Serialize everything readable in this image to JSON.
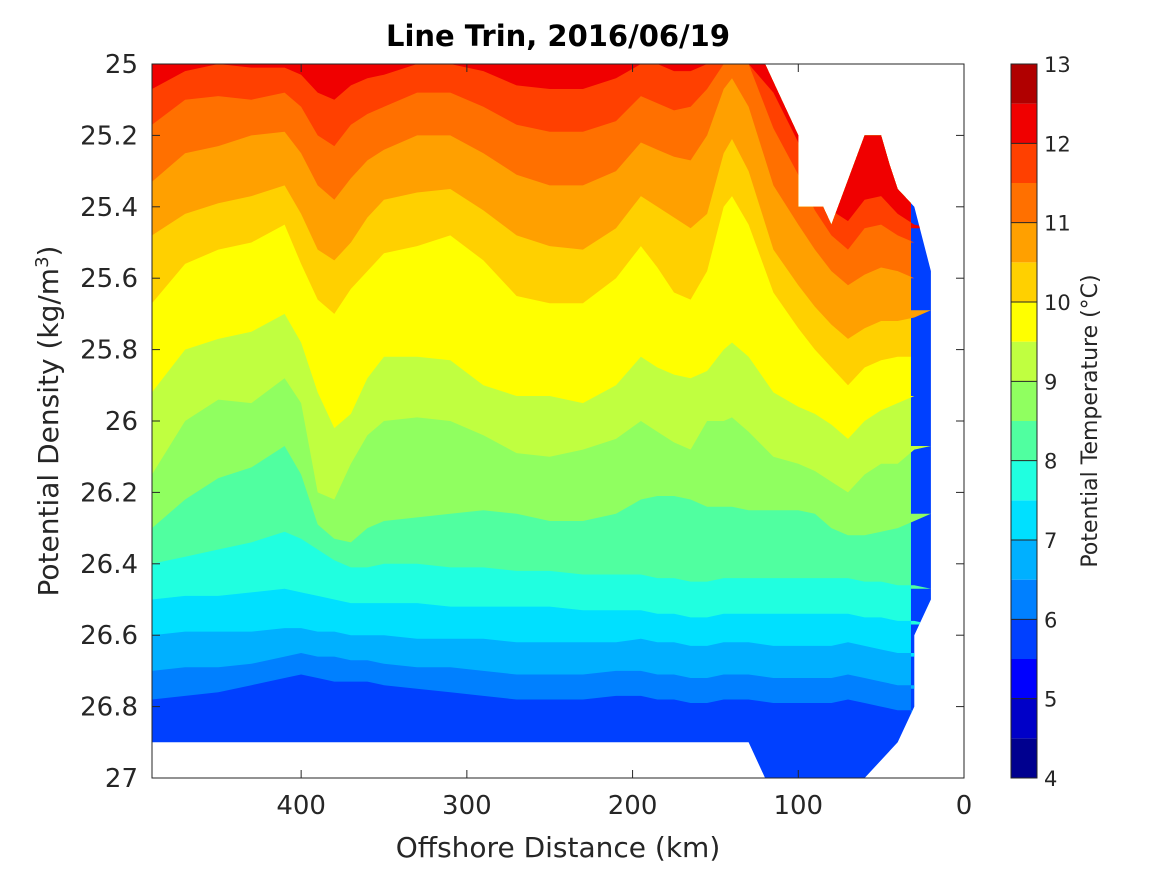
{
  "chart_data": {
    "type": "contour",
    "title": "Line Trin, 2016/06/19",
    "xlabel": "Offshore Distance (km)",
    "ylabel": "Potential Density (kg/m",
    "ylabel_sup": "3",
    "ylabel_close": ")",
    "colorbar_label": "Potential Temperature (°C)",
    "x_reversed": true,
    "y_reversed": true,
    "xlim": [
      0,
      490
    ],
    "ylim": [
      25,
      27
    ],
    "xticks": [
      400,
      300,
      200,
      100,
      0
    ],
    "yticks": [
      "25",
      "25.2",
      "25.4",
      "25.6",
      "25.8",
      "26",
      "26.2",
      "26.4",
      "26.6",
      "26.8",
      "27"
    ],
    "colorbar_ticks": [
      "4",
      "5",
      "6",
      "7",
      "8",
      "9",
      "10",
      "11",
      "12",
      "13"
    ],
    "colorbar_range": [
      4,
      13
    ],
    "levels": [
      4,
      4.5,
      5,
      5.5,
      6,
      6.5,
      7,
      7.5,
      8,
      8.5,
      9,
      9.5,
      10,
      10.5,
      11,
      11.5,
      12,
      12.5,
      13
    ],
    "colors": [
      "#00008f",
      "#0000c8",
      "#0000ff",
      "#0040ff",
      "#0080ff",
      "#00b0ff",
      "#00e0ff",
      "#20ffe0",
      "#50ffa0",
      "#90ff60",
      "#c0ff40",
      "#ffff00",
      "#ffd000",
      "#ffa000",
      "#ff7000",
      "#ff4000",
      "#f00000",
      "#b00000"
    ],
    "isotherm_depths": {
      "x": [
        490,
        470,
        450,
        430,
        410,
        400,
        390,
        380,
        370,
        360,
        350,
        330,
        310,
        290,
        270,
        250,
        230,
        210,
        195,
        185,
        175,
        165,
        155,
        145,
        140,
        130,
        115,
        100,
        90,
        80,
        70,
        60,
        50,
        40,
        30,
        20
      ],
      "series": [
        {
          "name": "6",
          "values": [
            26.78,
            26.77,
            26.76,
            26.74,
            26.72,
            26.71,
            26.72,
            26.73,
            26.73,
            26.73,
            26.74,
            26.75,
            26.76,
            26.77,
            26.78,
            26.78,
            26.78,
            26.77,
            26.77,
            26.78,
            26.78,
            26.79,
            26.79,
            26.78,
            26.78,
            26.78,
            26.79,
            26.79,
            26.79,
            26.79,
            26.78,
            26.79,
            26.8,
            26.81,
            26.81,
            26.82
          ]
        },
        {
          "name": "6.5",
          "values": [
            26.7,
            26.69,
            26.69,
            26.68,
            26.66,
            26.65,
            26.66,
            26.66,
            26.67,
            26.67,
            26.68,
            26.69,
            26.69,
            26.7,
            26.71,
            26.71,
            26.71,
            26.7,
            26.7,
            26.71,
            26.71,
            26.72,
            26.72,
            26.71,
            26.71,
            26.71,
            26.72,
            26.72,
            26.72,
            26.72,
            26.71,
            26.72,
            26.73,
            26.74,
            26.74,
            26.75
          ]
        },
        {
          "name": "7",
          "values": [
            26.6,
            26.59,
            26.59,
            26.59,
            26.58,
            26.58,
            26.59,
            26.59,
            26.6,
            26.6,
            26.6,
            26.61,
            26.61,
            26.61,
            26.62,
            26.62,
            26.62,
            26.62,
            26.61,
            26.62,
            26.62,
            26.63,
            26.63,
            26.62,
            26.62,
            26.62,
            26.63,
            26.63,
            26.63,
            26.63,
            26.62,
            26.63,
            26.64,
            26.65,
            26.65,
            26.66
          ]
        },
        {
          "name": "7.5",
          "values": [
            26.5,
            26.49,
            26.49,
            26.48,
            26.47,
            26.48,
            26.49,
            26.5,
            26.51,
            26.51,
            26.51,
            26.51,
            26.52,
            26.52,
            26.52,
            26.52,
            26.53,
            26.53,
            26.53,
            26.54,
            26.54,
            26.55,
            26.55,
            26.54,
            26.54,
            26.54,
            26.54,
            26.54,
            26.54,
            26.54,
            26.54,
            26.55,
            26.55,
            26.56,
            26.56,
            26.57
          ]
        },
        {
          "name": "8",
          "values": [
            26.4,
            26.38,
            26.36,
            26.34,
            26.31,
            26.33,
            26.36,
            26.39,
            26.41,
            26.41,
            26.4,
            26.4,
            26.41,
            26.41,
            26.42,
            26.42,
            26.43,
            26.43,
            26.43,
            26.44,
            26.44,
            26.45,
            26.45,
            26.44,
            26.44,
            26.44,
            26.44,
            26.44,
            26.44,
            26.44,
            26.44,
            26.45,
            26.45,
            26.46,
            26.46,
            26.47
          ]
        },
        {
          "name": "8.5",
          "values": [
            26.3,
            26.22,
            26.16,
            26.13,
            26.07,
            26.15,
            26.29,
            26.33,
            26.34,
            26.3,
            26.28,
            26.27,
            26.26,
            26.25,
            26.26,
            26.28,
            26.28,
            26.26,
            26.22,
            26.21,
            26.21,
            26.22,
            26.24,
            26.24,
            26.24,
            26.25,
            26.25,
            26.25,
            26.26,
            26.3,
            26.32,
            26.32,
            26.31,
            26.3,
            26.28,
            26.26
          ]
        },
        {
          "name": "9",
          "values": [
            26.15,
            26.0,
            25.94,
            25.95,
            25.88,
            25.95,
            26.2,
            26.22,
            26.12,
            26.04,
            26.0,
            25.99,
            26.0,
            26.04,
            26.09,
            26.1,
            26.08,
            26.05,
            26.0,
            26.03,
            26.06,
            26.08,
            26.0,
            26.0,
            25.99,
            26.03,
            26.1,
            26.12,
            26.14,
            26.17,
            26.2,
            26.15,
            26.12,
            26.12,
            26.08,
            26.07
          ]
        },
        {
          "name": "9.5",
          "values": [
            25.92,
            25.8,
            25.77,
            25.75,
            25.7,
            25.78,
            25.92,
            26.02,
            25.98,
            25.88,
            25.82,
            25.82,
            25.83,
            25.9,
            25.93,
            25.93,
            25.95,
            25.9,
            25.82,
            25.85,
            25.87,
            25.88,
            25.86,
            25.8,
            25.78,
            25.82,
            25.92,
            25.96,
            25.98,
            26.01,
            26.05,
            26.0,
            25.97,
            25.95,
            25.93,
            25.93
          ]
        },
        {
          "name": "10",
          "values": [
            25.67,
            25.56,
            25.52,
            25.5,
            25.45,
            25.56,
            25.66,
            25.7,
            25.63,
            25.58,
            25.53,
            25.51,
            25.48,
            25.55,
            25.65,
            25.67,
            25.67,
            25.6,
            25.51,
            25.57,
            25.64,
            25.66,
            25.58,
            25.4,
            25.37,
            25.45,
            25.64,
            25.74,
            25.8,
            25.85,
            25.9,
            25.85,
            25.83,
            25.82,
            25.82,
            25.82
          ]
        },
        {
          "name": "10.5",
          "values": [
            25.48,
            25.42,
            25.39,
            25.37,
            25.34,
            25.42,
            25.52,
            25.55,
            25.5,
            25.43,
            25.38,
            25.36,
            25.35,
            25.41,
            25.48,
            25.51,
            25.52,
            25.46,
            25.37,
            25.4,
            25.43,
            25.46,
            25.42,
            25.25,
            25.21,
            25.3,
            25.52,
            25.62,
            25.68,
            25.73,
            25.77,
            25.74,
            25.72,
            25.72,
            25.71,
            25.69
          ]
        },
        {
          "name": "11",
          "values": [
            25.33,
            25.25,
            25.23,
            25.2,
            25.19,
            25.25,
            25.34,
            25.38,
            25.32,
            25.27,
            25.24,
            25.2,
            25.2,
            25.25,
            25.31,
            25.34,
            25.34,
            25.3,
            25.22,
            25.24,
            25.26,
            25.27,
            25.2,
            25.07,
            25.04,
            25.12,
            25.34,
            25.45,
            25.52,
            25.58,
            25.62,
            25.59,
            25.57,
            25.58,
            25.6,
            25.6
          ]
        },
        {
          "name": "11.5",
          "values": [
            25.17,
            25.1,
            25.09,
            25.1,
            25.08,
            25.12,
            25.2,
            25.23,
            25.17,
            25.14,
            25.12,
            25.08,
            25.08,
            25.12,
            25.17,
            25.19,
            25.19,
            25.16,
            25.09,
            25.11,
            25.13,
            25.12,
            25.07,
            25.0,
            25.0,
            25.0,
            25.18,
            25.31,
            25.41,
            25.48,
            25.52,
            25.46,
            25.45,
            25.48,
            25.5,
            25.5
          ]
        },
        {
          "name": "12",
          "values": [
            25.07,
            25.02,
            25.0,
            25.01,
            25.01,
            25.03,
            25.08,
            25.1,
            25.06,
            25.04,
            25.03,
            25.0,
            25.0,
            25.02,
            25.06,
            25.07,
            25.07,
            25.04,
            25.0,
            25.0,
            25.02,
            25.02,
            25.0,
            25.0,
            25.0,
            25.0,
            25.08,
            25.22,
            25.34,
            25.41,
            25.44,
            25.38,
            25.37,
            25.42,
            25.45,
            25.46
          ]
        }
      ]
    },
    "data_region": {
      "top": {
        "x": [
          490,
          120,
          110,
          100,
          100,
          85,
          80,
          60,
          55,
          50,
          45,
          40,
          30,
          20
        ],
        "y": [
          25.0,
          25.0,
          25.1,
          25.2,
          25.4,
          25.4,
          25.45,
          25.2,
          25.2,
          25.2,
          25.28,
          25.35,
          25.4,
          25.58
        ]
      },
      "bottom": {
        "x": [
          490,
          130,
          120,
          60,
          40,
          30,
          30,
          20
        ],
        "y": [
          26.9,
          26.9,
          27.0,
          27.0,
          26.9,
          26.8,
          26.6,
          26.5
        ]
      }
    }
  }
}
